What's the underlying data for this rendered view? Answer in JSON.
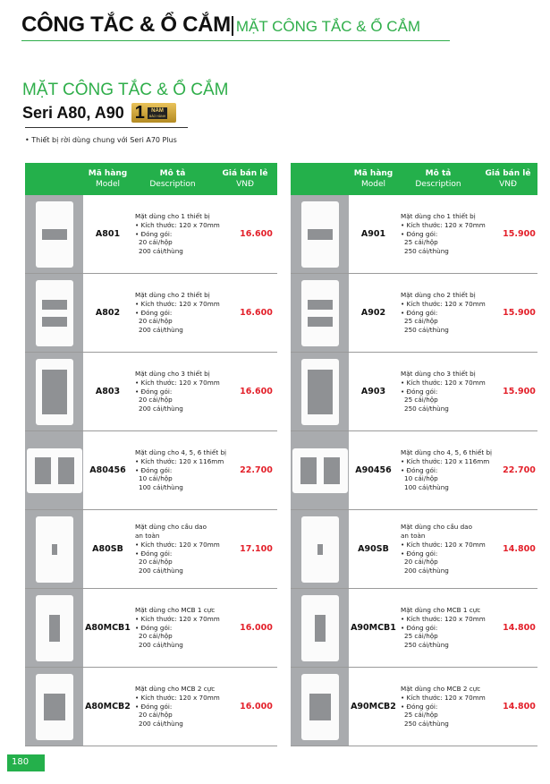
{
  "header": {
    "title": "CÔNG TẮC & Ổ CẮM",
    "subtitle": "MẶT CÔNG TẮC & Ổ CẮM"
  },
  "section": {
    "title": "MẶT CÔNG TẮC & Ổ CẮM",
    "series": "Seri A80, A90",
    "warranty": {
      "number": "1",
      "unit": "NĂM",
      "label": "BẢO HÀNH"
    },
    "note": "• Thiết bị rời dùng chung với Seri A70 Plus"
  },
  "columns": {
    "model": "Mã hàng",
    "model_en": "Model",
    "desc": "Mô tả",
    "desc_en": "Description",
    "price": "Giá bán lẻ",
    "price_en": "VNĐ"
  },
  "tables": [
    {
      "rows": [
        {
          "thumb": "1-gang",
          "model": "A801",
          "desc": [
            "Mặt dùng cho 1 thiết bị",
            "• Kích thước: 120 x 70mm",
            "• Đóng gói:",
            "20 cái/hộp",
            "200 cái/thùng"
          ],
          "price": "16.600"
        },
        {
          "thumb": "2-gang",
          "model": "A802",
          "desc": [
            "Mặt dùng cho 2 thiết bị",
            "• Kích thước: 120 x 70mm",
            "• Đóng gói:",
            "20 cái/hộp",
            "200 cái/thùng"
          ],
          "price": "16.600"
        },
        {
          "thumb": "3-gang",
          "model": "A803",
          "desc": [
            "Mặt dùng cho 3 thiết bị",
            "• Kích thước: 120 x 70mm",
            "• Đóng gói:",
            "20 cái/hộp",
            "200 cái/thùng"
          ],
          "price": "16.600"
        },
        {
          "thumb": "456-gang",
          "model": "A80456",
          "desc": [
            "Mặt dùng cho 4, 5, 6 thiết bị",
            "• Kích thước: 120 x 116mm",
            "• Đóng gói:",
            "10 cái/hộp",
            "100 cái/thùng"
          ],
          "price": "22.700"
        },
        {
          "thumb": "safety-breaker",
          "model": "A80SB",
          "desc": [
            "Mặt dùng cho cầu dao",
            "an toàn",
            "• Kích thước: 120 x 70mm",
            "• Đóng gói:",
            "20 cái/hộp",
            "200 cái/thùng"
          ],
          "price": "17.100"
        },
        {
          "thumb": "mcb-1",
          "model": "A80MCB1",
          "desc": [
            "Mặt dùng cho MCB 1 cực",
            "• Kích thước: 120 x 70mm",
            "• Đóng gói:",
            "20 cái/hộp",
            "200 cái/thùng"
          ],
          "price": "16.000"
        },
        {
          "thumb": "mcb-2",
          "model": "A80MCB2",
          "desc": [
            "Mặt dùng cho MCB 2 cực",
            "• Kích thước: 120 x 70mm",
            "• Đóng gói:",
            "20 cái/hộp",
            "200 cái/thùng"
          ],
          "price": "16.000"
        }
      ]
    },
    {
      "rows": [
        {
          "thumb": "1-gang",
          "model": "A901",
          "desc": [
            "Mặt dùng cho 1 thiết bị",
            "• Kích thước: 120 x 70mm",
            "• Đóng gói:",
            "25 cái/hộp",
            "250 cái/thùng"
          ],
          "price": "15.900"
        },
        {
          "thumb": "2-gang",
          "model": "A902",
          "desc": [
            "Mặt dùng cho 2 thiết bị",
            "• Kích thước: 120 x 70mm",
            "• Đóng gói:",
            "25 cái/hộp",
            "250 cái/thùng"
          ],
          "price": "15.900"
        },
        {
          "thumb": "3-gang",
          "model": "A903",
          "desc": [
            "Mặt dùng cho 3 thiết bị",
            "• Kích thước: 120 x 70mm",
            "• Đóng gói:",
            "25 cái/hộp",
            "250 cái/thùng"
          ],
          "price": "15.900"
        },
        {
          "thumb": "456-gang",
          "model": "A90456",
          "desc": [
            "Mặt dùng cho 4, 5, 6 thiết bị",
            "• Kích thước: 120 x 116mm",
            "• Đóng gói:",
            "10 cái/hộp",
            "100 cái/thùng"
          ],
          "price": "22.700"
        },
        {
          "thumb": "safety-breaker",
          "model": "A90SB",
          "desc": [
            "Mặt dùng cho cầu dao",
            "an toàn",
            "• Kích thước: 120 x 70mm",
            "• Đóng gói:",
            "20 cái/hộp",
            "200 cái/thùng"
          ],
          "price": "14.800"
        },
        {
          "thumb": "mcb-1",
          "model": "A90MCB1",
          "desc": [
            "Mặt dùng cho MCB 1 cực",
            "• Kích thước: 120 x 70mm",
            "• Đóng gói:",
            "25 cái/hộp",
            "250 cái/thùng"
          ],
          "price": "14.800"
        },
        {
          "thumb": "mcb-2",
          "model": "A90MCB2",
          "desc": [
            "Mặt dùng cho MCB 2 cực",
            "• Kích thước: 120 x 70mm",
            "• Đóng gói:",
            "25 cái/hộp",
            "250 cái/thùng"
          ],
          "price": "14.800"
        }
      ]
    }
  ],
  "page_number": "180",
  "colors": {
    "green": "#24b04b",
    "price_red": "#e3202a",
    "thumb_bg": "#a9abae"
  }
}
